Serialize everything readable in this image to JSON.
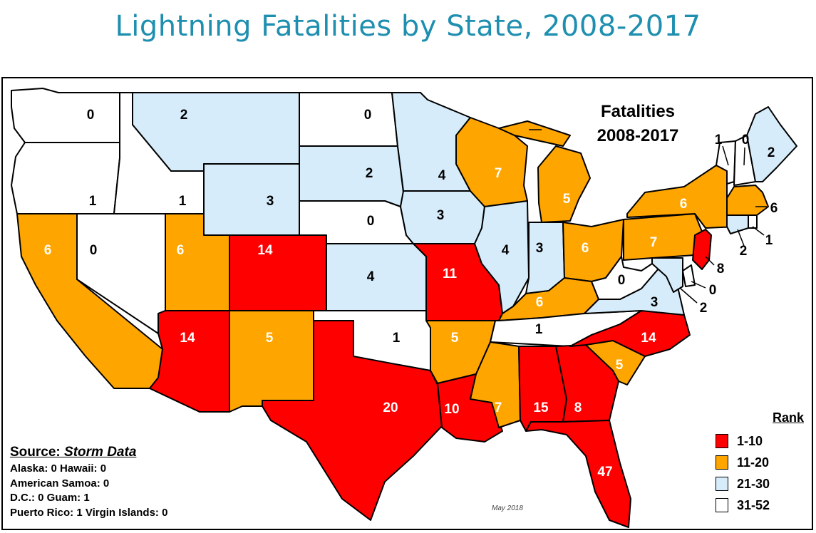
{
  "title": "Lightning Fatalities by State, 2008-2017",
  "map_heading": {
    "line1": "Fatalities",
    "line2": "2008-2017"
  },
  "colors": {
    "rank_1_10": "#ff0000",
    "rank_11_20": "#ffa500",
    "rank_21_30": "#d6ecfa",
    "rank_31_52": "#ffffff",
    "title": "#1f8fb0"
  },
  "source": {
    "label": "Source:",
    "name": "Storm Data",
    "lines": [
      "Alaska: 0   Hawaii: 0",
      "American Samoa: 0",
      "D.C.: 0   Guam: 1",
      "Puerto Rico: 1   Virgin Islands: 0"
    ]
  },
  "date_note": "May  2018",
  "legend": {
    "title": "Rank",
    "items": [
      {
        "label": "1-10",
        "rank": "rank_1_10"
      },
      {
        "label": "11-20",
        "rank": "rank_11_20"
      },
      {
        "label": "21-30",
        "rank": "rank_21_30"
      },
      {
        "label": "31-52",
        "rank": "rank_31_52"
      }
    ]
  },
  "states": [
    {
      "id": "WA",
      "value": "0",
      "rank": "rank_31_52"
    },
    {
      "id": "OR",
      "value": "1",
      "rank": "rank_31_52"
    },
    {
      "id": "CA",
      "value": "6",
      "rank": "rank_11_20"
    },
    {
      "id": "NV",
      "value": "0",
      "rank": "rank_31_52"
    },
    {
      "id": "ID",
      "value": "1",
      "rank": "rank_31_52"
    },
    {
      "id": "MT",
      "value": "2",
      "rank": "rank_21_30"
    },
    {
      "id": "WY",
      "value": "3",
      "rank": "rank_21_30"
    },
    {
      "id": "UT",
      "value": "6",
      "rank": "rank_11_20"
    },
    {
      "id": "CO",
      "value": "14",
      "rank": "rank_1_10"
    },
    {
      "id": "AZ",
      "value": "14",
      "rank": "rank_1_10"
    },
    {
      "id": "NM",
      "value": "5",
      "rank": "rank_11_20"
    },
    {
      "id": "ND",
      "value": "0",
      "rank": "rank_31_52"
    },
    {
      "id": "SD",
      "value": "2",
      "rank": "rank_21_30"
    },
    {
      "id": "NE",
      "value": "0",
      "rank": "rank_31_52"
    },
    {
      "id": "KS",
      "value": "4",
      "rank": "rank_21_30"
    },
    {
      "id": "OK",
      "value": "1",
      "rank": "rank_31_52"
    },
    {
      "id": "TX",
      "value": "20",
      "rank": "rank_1_10"
    },
    {
      "id": "MN",
      "value": "4",
      "rank": "rank_21_30"
    },
    {
      "id": "IA",
      "value": "3",
      "rank": "rank_21_30"
    },
    {
      "id": "MO",
      "value": "11",
      "rank": "rank_1_10"
    },
    {
      "id": "AR",
      "value": "5",
      "rank": "rank_11_20"
    },
    {
      "id": "LA",
      "value": "10",
      "rank": "rank_1_10"
    },
    {
      "id": "WI",
      "value": "7",
      "rank": "rank_11_20"
    },
    {
      "id": "IL",
      "value": "4",
      "rank": "rank_21_30"
    },
    {
      "id": "MI",
      "value": "5",
      "rank": "rank_11_20"
    },
    {
      "id": "IN",
      "value": "3",
      "rank": "rank_21_30"
    },
    {
      "id": "OH",
      "value": "6",
      "rank": "rank_11_20"
    },
    {
      "id": "KY",
      "value": "6",
      "rank": "rank_11_20"
    },
    {
      "id": "TN",
      "value": "1",
      "rank": "rank_31_52"
    },
    {
      "id": "MS",
      "value": "7",
      "rank": "rank_11_20"
    },
    {
      "id": "AL",
      "value": "15",
      "rank": "rank_1_10"
    },
    {
      "id": "GA",
      "value": "8",
      "rank": "rank_1_10"
    },
    {
      "id": "FL",
      "value": "47",
      "rank": "rank_1_10"
    },
    {
      "id": "SC",
      "value": "5",
      "rank": "rank_11_20"
    },
    {
      "id": "NC",
      "value": "14",
      "rank": "rank_1_10"
    },
    {
      "id": "VA",
      "value": "3",
      "rank": "rank_21_30"
    },
    {
      "id": "WV",
      "value": "0",
      "rank": "rank_31_52"
    },
    {
      "id": "PA",
      "value": "7",
      "rank": "rank_11_20"
    },
    {
      "id": "NY",
      "value": "6",
      "rank": "rank_11_20"
    },
    {
      "id": "VT",
      "value": "1",
      "rank": "rank_31_52"
    },
    {
      "id": "NH",
      "value": "0",
      "rank": "rank_31_52"
    },
    {
      "id": "ME",
      "value": "2",
      "rank": "rank_21_30"
    },
    {
      "id": "MA",
      "value": "6",
      "rank": "rank_11_20"
    },
    {
      "id": "RI",
      "value": "1",
      "rank": "rank_31_52"
    },
    {
      "id": "CT",
      "value": "2",
      "rank": "rank_21_30"
    },
    {
      "id": "NJ",
      "value": "8",
      "rank": "rank_1_10"
    },
    {
      "id": "DE",
      "value": "0",
      "rank": "rank_31_52"
    },
    {
      "id": "MD",
      "value": "2",
      "rank": "rank_21_30"
    }
  ]
}
